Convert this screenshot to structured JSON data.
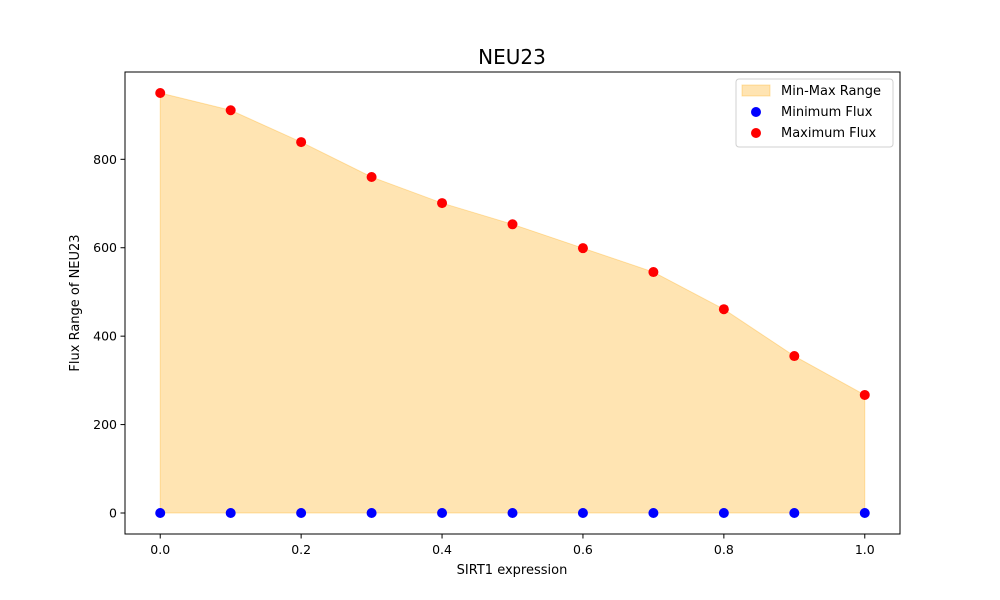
{
  "chart_data": {
    "type": "scatter",
    "title": "NEU23",
    "xlabel": "SIRT1 expression",
    "ylabel": "Flux Range of NEU23",
    "x": [
      0.0,
      0.1,
      0.2,
      0.3,
      0.4,
      0.5,
      0.6,
      0.7,
      0.8,
      0.9,
      1.0
    ],
    "series": [
      {
        "name": "Minimum Flux",
        "kind": "scatter",
        "color": "#0000ff",
        "values": [
          0,
          0,
          0,
          0,
          0,
          0,
          0,
          0,
          0,
          0,
          0
        ]
      },
      {
        "name": "Maximum Flux",
        "kind": "scatter",
        "color": "#ff0000",
        "values": [
          950,
          911,
          839,
          760,
          701,
          653,
          599,
          545,
          461,
          355,
          267
        ]
      }
    ],
    "range_fill": {
      "name": "Min-Max Range",
      "color": "#ffa500",
      "opacity": 0.3
    },
    "xlim": [
      -0.05,
      1.05
    ],
    "ylim": [
      -47.5,
      997.5
    ],
    "xticks": [
      0.0,
      0.2,
      0.4,
      0.6,
      0.8,
      1.0
    ],
    "xtick_labels": [
      "0.0",
      "0.2",
      "0.4",
      "0.6",
      "0.8",
      "1.0"
    ],
    "yticks": [
      0,
      200,
      400,
      600,
      800
    ],
    "ytick_labels": [
      "0",
      "200",
      "400",
      "600",
      "800"
    ],
    "grid": false,
    "legend": {
      "placement": "top-right",
      "entries": [
        "Min-Max Range",
        "Minimum Flux",
        "Maximum Flux"
      ]
    }
  }
}
